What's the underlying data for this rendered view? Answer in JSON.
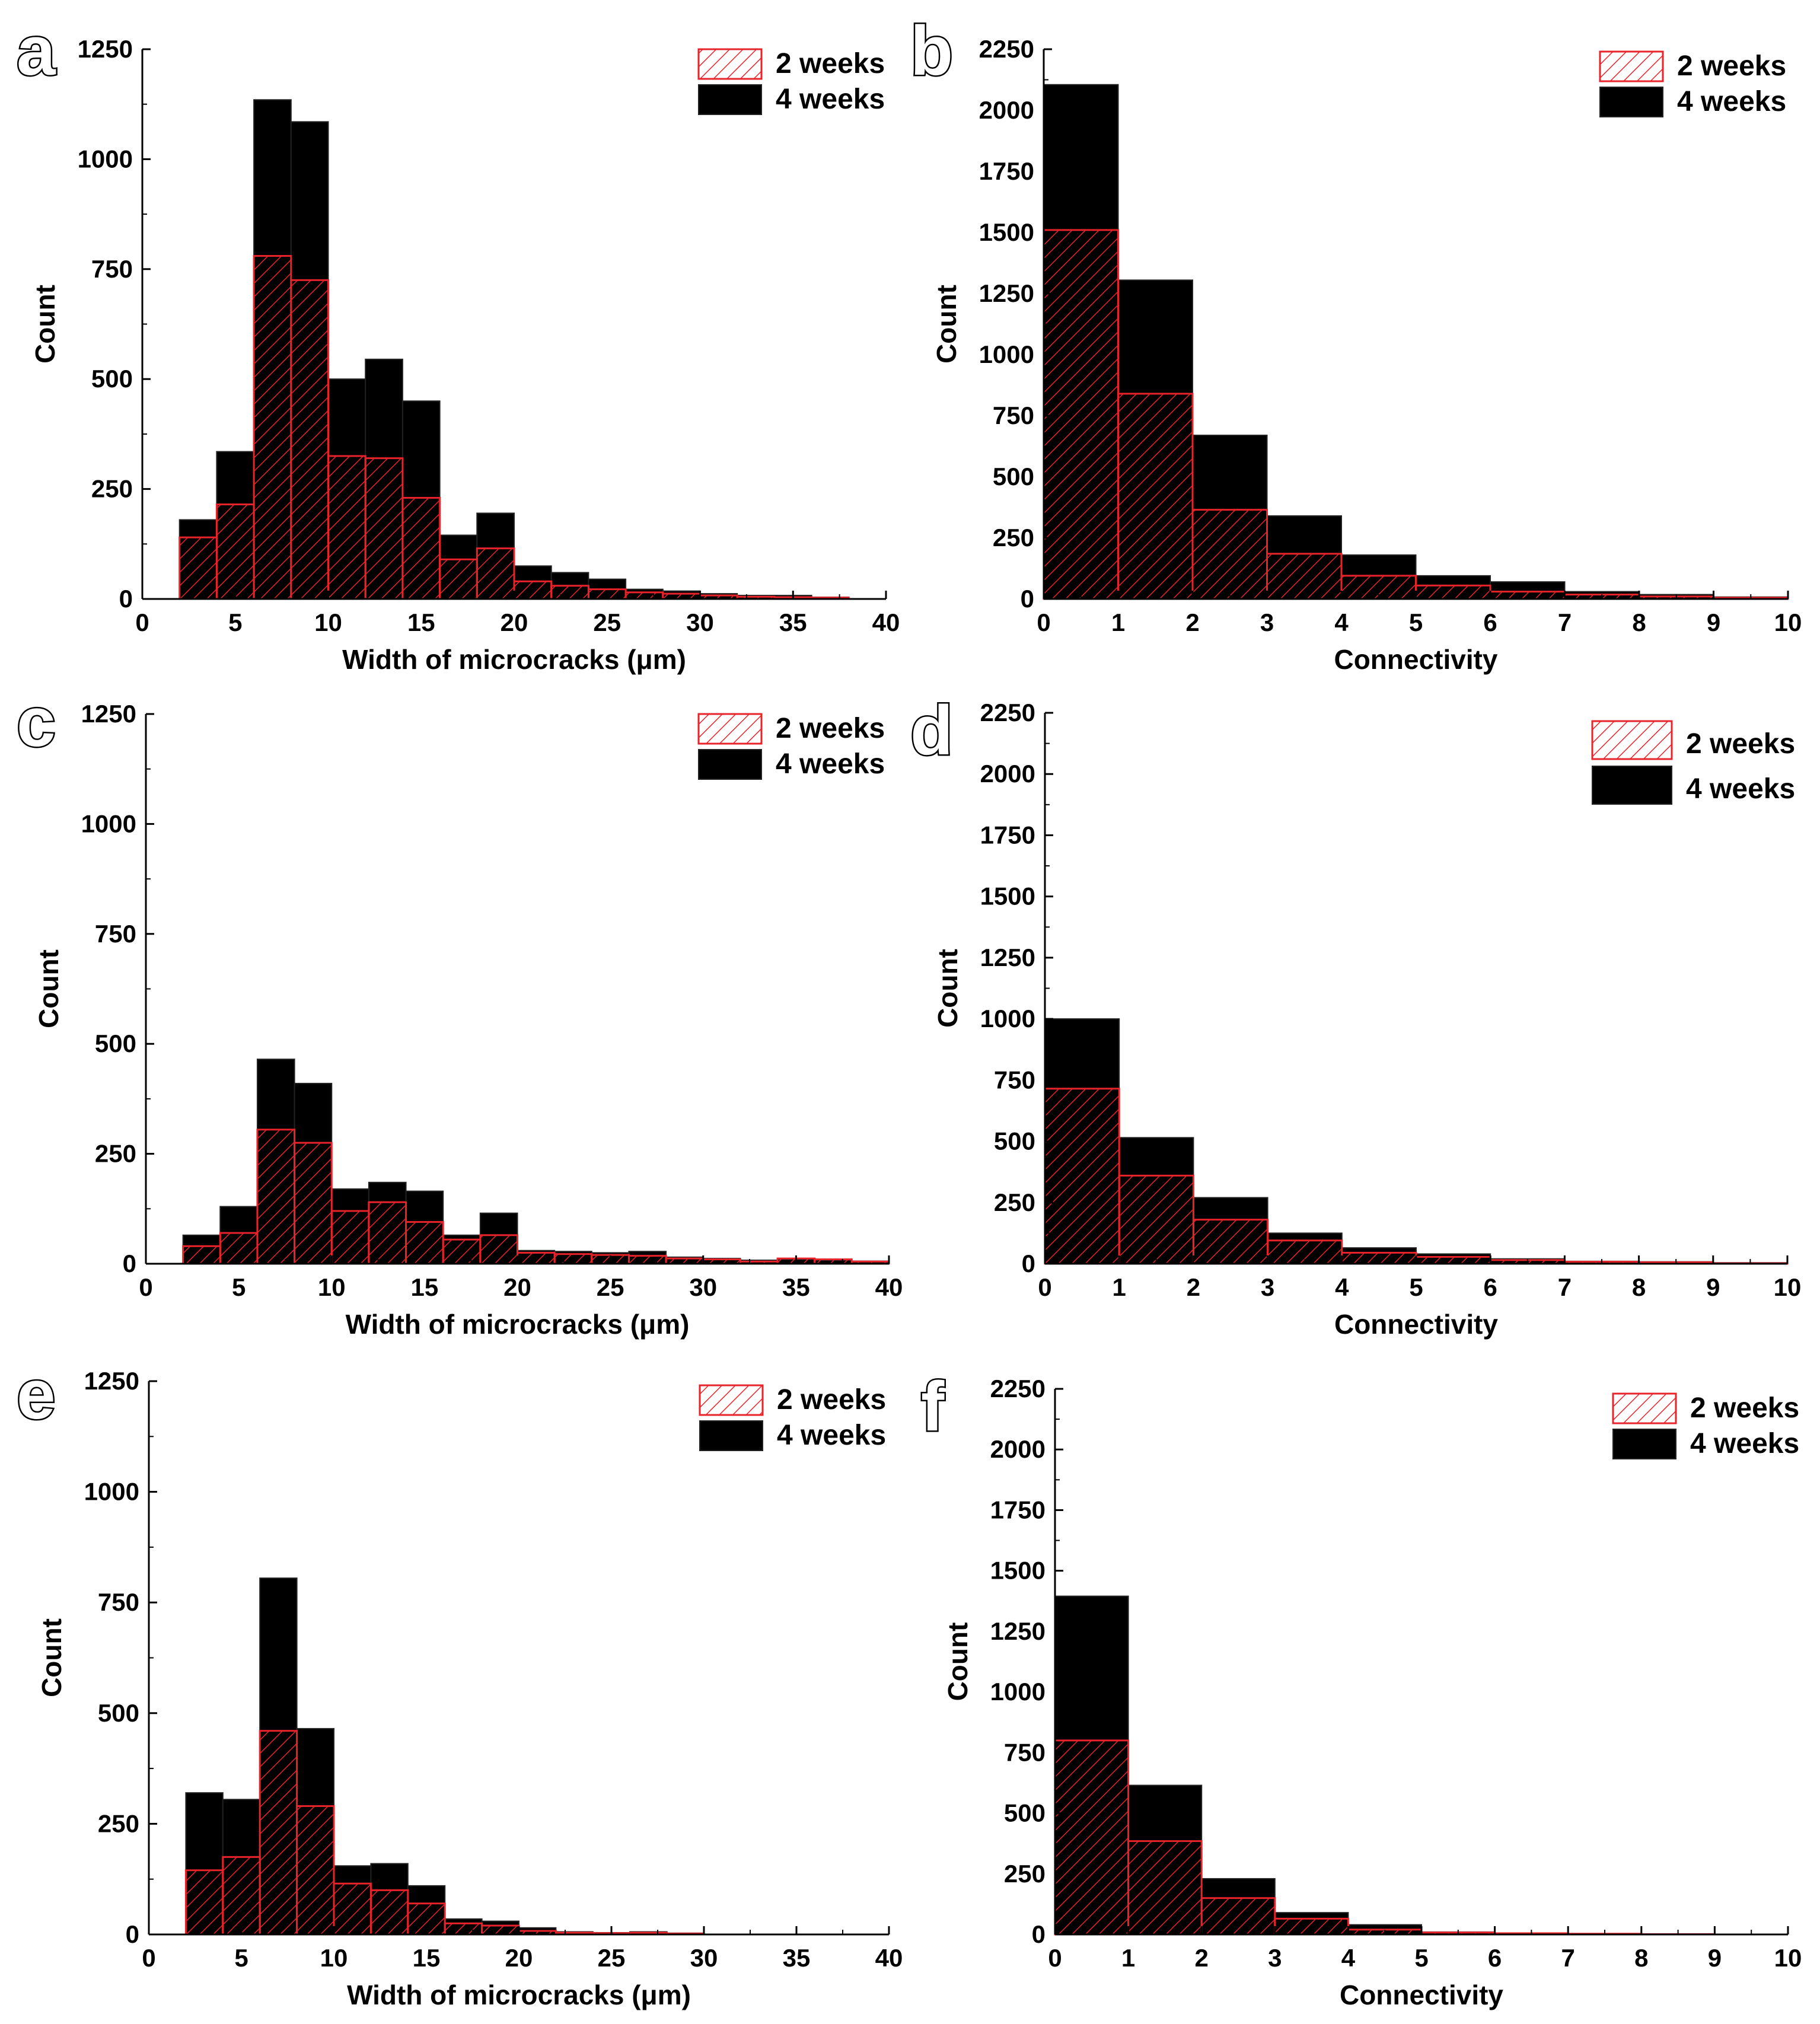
{
  "figure": {
    "legend": {
      "series_2w": "2 weeks",
      "series_4w": "4 weeks"
    },
    "colors": {
      "bar_4w": "#000000",
      "hatch_2w": "#e8232a",
      "axis": "#000000",
      "background": "#ffffff"
    }
  },
  "chart_data": [
    {
      "id": "a",
      "label": "a",
      "type": "bar",
      "title": "",
      "xlabel": "Width of microcracks (μm)",
      "ylabel": "Count",
      "xlim": [
        0,
        40
      ],
      "ylim": [
        0,
        1250
      ],
      "xticks": [
        0,
        5,
        10,
        15,
        20,
        25,
        30,
        35,
        40
      ],
      "yticks": [
        0,
        250,
        500,
        750,
        1000,
        1250
      ],
      "bin_edges": [
        2,
        4,
        6,
        8,
        10,
        12,
        14,
        16,
        18,
        20,
        22,
        24,
        26,
        28,
        30,
        32,
        34,
        36,
        38,
        40
      ],
      "series": [
        {
          "name": "4 weeks",
          "values": [
            180,
            335,
            1135,
            1085,
            500,
            545,
            450,
            145,
            195,
            75,
            60,
            45,
            22,
            18,
            12,
            8,
            8,
            4,
            0
          ]
        },
        {
          "name": "2 weeks",
          "values": [
            140,
            215,
            780,
            725,
            325,
            320,
            230,
            90,
            115,
            40,
            30,
            22,
            15,
            12,
            8,
            5,
            4,
            3,
            0
          ]
        }
      ]
    },
    {
      "id": "b",
      "label": "b",
      "type": "bar",
      "title": "",
      "xlabel": "Connectivity",
      "ylabel": "Count",
      "xlim": [
        0,
        10
      ],
      "ylim": [
        0,
        2250
      ],
      "xticks": [
        0,
        1,
        2,
        3,
        4,
        5,
        6,
        7,
        8,
        9,
        10
      ],
      "yticks": [
        0,
        250,
        500,
        750,
        1000,
        1250,
        1500,
        1750,
        2000,
        2250
      ],
      "bin_edges": [
        0,
        1,
        2,
        3,
        4,
        5,
        6,
        7,
        8,
        9,
        10
      ],
      "series": [
        {
          "name": "4 weeks",
          "values": [
            2105,
            1305,
            670,
            340,
            180,
            95,
            70,
            30,
            18,
            8
          ]
        },
        {
          "name": "2 weeks",
          "values": [
            1510,
            840,
            365,
            185,
            95,
            55,
            30,
            18,
            10,
            5
          ]
        }
      ]
    },
    {
      "id": "c",
      "label": "c",
      "type": "bar",
      "title": "",
      "xlabel": "Width of microcracks (μm)",
      "ylabel": "Count",
      "xlim": [
        0,
        40
      ],
      "ylim": [
        0,
        1250
      ],
      "xticks": [
        0,
        5,
        10,
        15,
        20,
        25,
        30,
        35,
        40
      ],
      "yticks": [
        0,
        250,
        500,
        750,
        1000,
        1250
      ],
      "bin_edges": [
        2,
        4,
        6,
        8,
        10,
        12,
        14,
        16,
        18,
        20,
        22,
        24,
        26,
        28,
        30,
        32,
        34,
        36,
        38,
        40
      ],
      "series": [
        {
          "name": "4 weeks",
          "values": [
            65,
            130,
            465,
            410,
            170,
            185,
            165,
            65,
            115,
            30,
            28,
            25,
            28,
            15,
            12,
            8,
            10,
            8,
            6
          ]
        },
        {
          "name": "2 weeks",
          "values": [
            40,
            70,
            305,
            275,
            120,
            140,
            95,
            55,
            65,
            25,
            22,
            20,
            18,
            12,
            10,
            5,
            12,
            10,
            5
          ]
        }
      ]
    },
    {
      "id": "d",
      "label": "d",
      "type": "bar",
      "title": "",
      "xlabel": "Connectivity",
      "ylabel": "Count",
      "xlim": [
        0,
        10
      ],
      "ylim": [
        0,
        2250
      ],
      "xticks": [
        0,
        1,
        2,
        3,
        4,
        5,
        6,
        7,
        8,
        9,
        10
      ],
      "yticks": [
        0,
        250,
        500,
        750,
        1000,
        1250,
        1500,
        1750,
        2000,
        2250
      ],
      "bin_edges": [
        0,
        1,
        2,
        3,
        4,
        5,
        6,
        7,
        8,
        9,
        10
      ],
      "series": [
        {
          "name": "4 weeks",
          "values": [
            1000,
            515,
            270,
            125,
            65,
            40,
            20,
            10,
            8,
            4
          ]
        },
        {
          "name": "2 weeks",
          "values": [
            715,
            360,
            180,
            95,
            45,
            28,
            15,
            8,
            6,
            2
          ]
        }
      ]
    },
    {
      "id": "e",
      "label": "e",
      "type": "bar",
      "title": "",
      "xlabel": "Width of microcracks (μm)",
      "ylabel": "Count",
      "xlim": [
        0,
        40
      ],
      "ylim": [
        0,
        1250
      ],
      "xticks": [
        0,
        5,
        10,
        15,
        20,
        25,
        30,
        35,
        40
      ],
      "yticks": [
        0,
        250,
        500,
        750,
        1000,
        1250
      ],
      "bin_edges": [
        2,
        4,
        6,
        8,
        10,
        12,
        14,
        16,
        18,
        20,
        22,
        24,
        26,
        28,
        30,
        32,
        34,
        36,
        38,
        40
      ],
      "series": [
        {
          "name": "4 weeks",
          "values": [
            320,
            305,
            805,
            465,
            155,
            160,
            110,
            35,
            30,
            15,
            6,
            4,
            6,
            3,
            0,
            0,
            0,
            0,
            0
          ]
        },
        {
          "name": "2 weeks",
          "values": [
            145,
            175,
            460,
            290,
            115,
            100,
            70,
            25,
            20,
            8,
            4,
            3,
            4,
            2,
            0,
            0,
            0,
            0,
            0
          ]
        }
      ]
    },
    {
      "id": "f",
      "label": "f",
      "type": "bar",
      "title": "",
      "xlabel": "Connectivity",
      "ylabel": "Count",
      "xlim": [
        0,
        10
      ],
      "ylim": [
        0,
        2250
      ],
      "xticks": [
        0,
        1,
        2,
        3,
        4,
        5,
        6,
        7,
        8,
        9,
        10
      ],
      "yticks": [
        0,
        250,
        500,
        750,
        1000,
        1250,
        1500,
        1750,
        2000,
        2250
      ],
      "bin_edges": [
        0,
        1,
        2,
        3,
        4,
        5,
        6,
        7,
        8,
        9,
        10
      ],
      "series": [
        {
          "name": "4 weeks",
          "values": [
            1395,
            615,
            230,
            90,
            40,
            10,
            6,
            3,
            2,
            0
          ]
        },
        {
          "name": "2 weeks",
          "values": [
            800,
            385,
            150,
            65,
            20,
            8,
            5,
            3,
            1,
            0
          ]
        }
      ]
    }
  ]
}
